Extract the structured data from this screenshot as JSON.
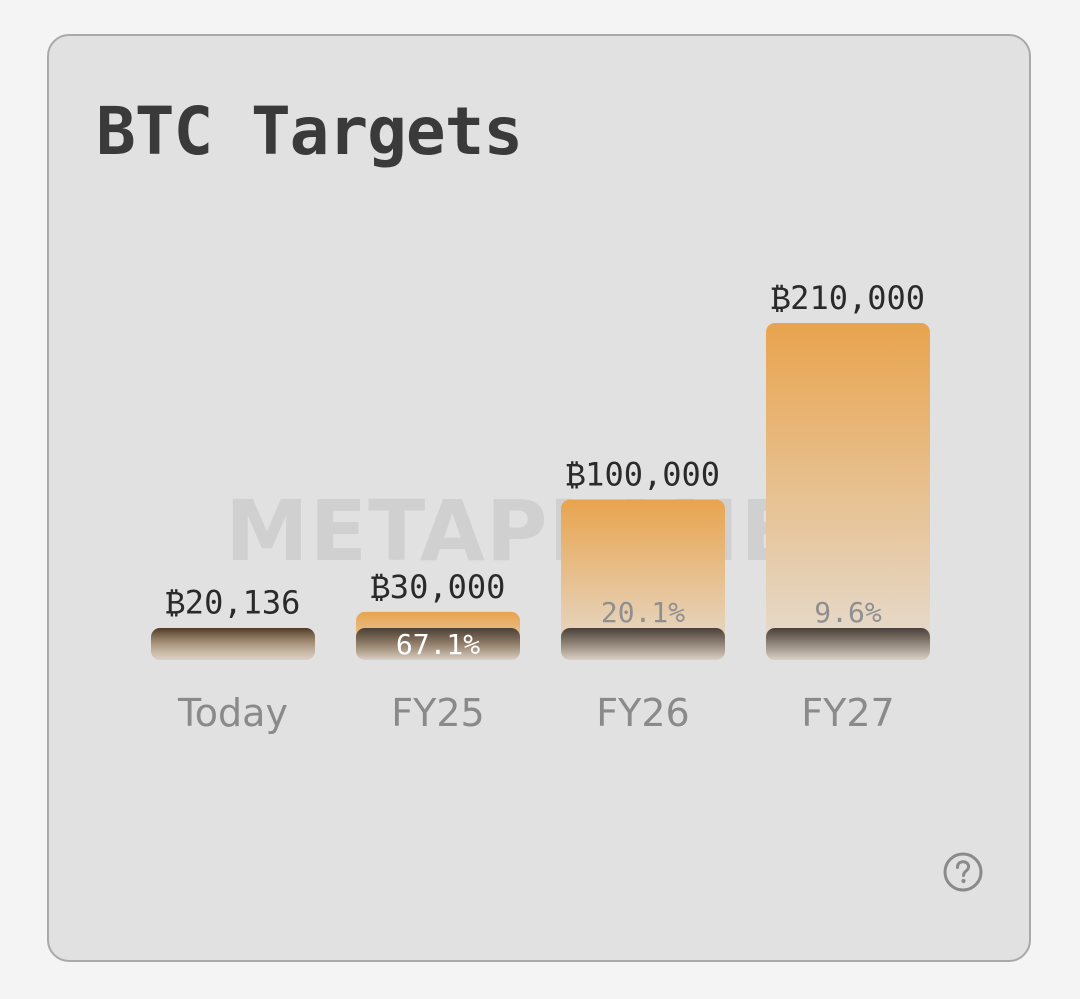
{
  "card": {
    "title": "BTC Targets",
    "watermark": "METAPLANET",
    "help_icon": "question-circle-icon"
  },
  "chart_data": {
    "type": "bar",
    "title": "BTC Targets",
    "xlabel": "",
    "ylabel": "",
    "categories": [
      "Today",
      "FY25",
      "FY26",
      "FY27"
    ],
    "values": [
      20136,
      30000,
      100000,
      210000
    ],
    "value_labels": [
      "₿20,136",
      "₿30,000",
      "₿100,000",
      "₿210,000"
    ],
    "holdings_share_labels": [
      "",
      "67.1%",
      "20.1%",
      "9.6%"
    ],
    "ylim": [
      0,
      210000
    ],
    "grid": false,
    "legend": "none",
    "colors": {
      "target_bar_top": "#e8a44e",
      "target_bar_bottom": "#e6ddd3",
      "current_holdings_top": "#4a4039",
      "value_label": "#2a2a2a",
      "category_label": "#8a8a8a",
      "share_label_light": "#ffffff",
      "share_label_dark": "#8f8f8f"
    }
  }
}
